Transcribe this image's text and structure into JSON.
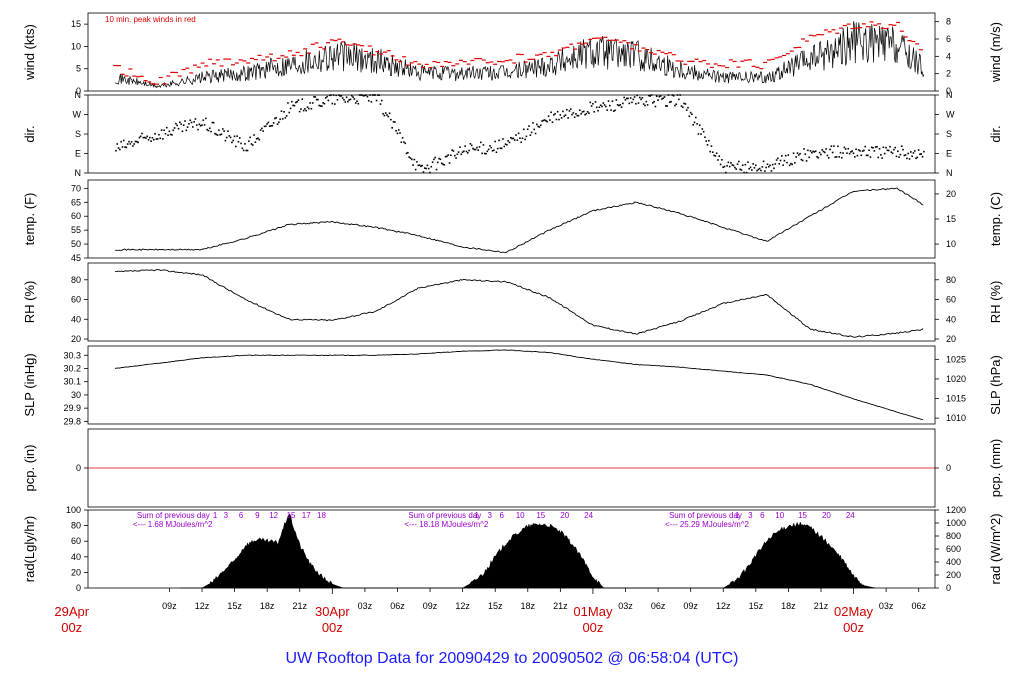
{
  "footer_title": "UW Rooftop Data for 20090429  to  20090502 @ 06:58:04  (UTC)",
  "colors": {
    "peak_red": "#e00000",
    "series_black": "#000000",
    "title_blue": "#1a1aff",
    "solar_purple": "#9900cc",
    "zero_line_red": "#d00000"
  },
  "chart_data": [
    {
      "id": "wind",
      "type": "line",
      "ylabel": "wind (kts)",
      "ylabel_right": "wind (m/s)",
      "annotation": "10 min. peak winds in red",
      "ylim": [
        0,
        17.5
      ],
      "yticks": [
        0,
        5,
        10,
        15
      ],
      "right_ylim": [
        0,
        9
      ],
      "right_yticks": [
        0,
        2,
        4,
        6,
        8
      ],
      "x_hours": [
        4,
        8,
        12,
        16,
        20,
        24,
        28,
        32,
        36,
        40,
        44,
        48,
        52,
        56,
        60,
        64,
        68,
        72,
        76,
        78.5
      ],
      "series": [
        {
          "values": [
            3,
            1,
            3,
            4,
            6,
            8,
            7,
            4,
            4,
            4,
            6,
            9,
            8,
            5,
            3,
            3,
            7,
            11,
            10,
            5
          ]
        },
        {
          "values": [
            5,
            2,
            6,
            7,
            8,
            11,
            9,
            6,
            6,
            7,
            8,
            12,
            10,
            7,
            6,
            6,
            12,
            15,
            15,
            8
          ]
        }
      ]
    },
    {
      "id": "dir",
      "type": "scatter",
      "ylabel": "dir.",
      "ylabel_right": "dir.",
      "ylim": [
        0,
        360
      ],
      "yticks": [
        0,
        90,
        180,
        270,
        360
      ],
      "ytick_labels": [
        "N",
        "E",
        "S",
        "W",
        "N"
      ],
      "x_hours": [
        4,
        8,
        12,
        16,
        20,
        24,
        28,
        32,
        36,
        40,
        44,
        48,
        52,
        56,
        60,
        64,
        68,
        72,
        76,
        78.5
      ],
      "values": [
        110,
        180,
        230,
        120,
        300,
        340,
        350,
        10,
        100,
        130,
        250,
        300,
        330,
        340,
        20,
        30,
        90,
        100,
        95,
        85
      ]
    },
    {
      "id": "temp",
      "type": "line",
      "ylabel": "temp. (F)",
      "ylabel_right": "temp. (C)",
      "ylim": [
        45,
        73
      ],
      "yticks": [
        45,
        50,
        55,
        60,
        65,
        70
      ],
      "right_ylim": [
        7.22,
        22.78
      ],
      "right_yticks": [
        10,
        15,
        20
      ],
      "x_hours": [
        4,
        8,
        12,
        16,
        20,
        24,
        28,
        32,
        36,
        40,
        44,
        48,
        52,
        56,
        60,
        64,
        68,
        72,
        76,
        78.5
      ],
      "values": [
        48,
        48,
        48,
        52,
        57,
        58,
        56,
        53,
        49,
        47,
        55,
        62,
        65,
        61,
        56,
        51,
        60,
        69,
        70,
        64
      ]
    },
    {
      "id": "rh",
      "type": "line",
      "ylabel": "RH (%)",
      "ylabel_right": "RH (%)",
      "ylim": [
        18,
        97
      ],
      "yticks": [
        20,
        40,
        60,
        80
      ],
      "right_yticks": [
        20,
        40,
        60,
        80
      ],
      "x_hours": [
        4,
        8,
        12,
        16,
        20,
        24,
        28,
        32,
        36,
        40,
        44,
        48,
        52,
        56,
        60,
        64,
        68,
        72,
        76,
        78.5
      ],
      "values": [
        88,
        90,
        85,
        60,
        40,
        39,
        48,
        72,
        80,
        78,
        62,
        34,
        25,
        38,
        56,
        65,
        30,
        22,
        26,
        30
      ]
    },
    {
      "id": "slp",
      "type": "line",
      "ylabel": "SLP (inHg)",
      "ylabel_right": "SLP (hPa)",
      "ylim": [
        29.78,
        30.37
      ],
      "yticks": [
        29.8,
        29.9,
        30.0,
        30.1,
        30.2,
        30.3
      ],
      "right_ylim": [
        1008.5,
        1028.4
      ],
      "right_yticks": [
        1010,
        1015,
        1020,
        1025
      ],
      "x_hours": [
        4,
        8,
        12,
        16,
        20,
        24,
        28,
        32,
        36,
        40,
        44,
        48,
        52,
        56,
        60,
        64,
        68,
        72,
        76,
        78.5
      ],
      "values": [
        30.2,
        30.24,
        30.28,
        30.3,
        30.3,
        30.3,
        30.3,
        30.31,
        30.33,
        30.34,
        30.32,
        30.27,
        30.23,
        30.21,
        30.18,
        30.15,
        30.08,
        29.97,
        29.87,
        29.81
      ]
    },
    {
      "id": "pcp",
      "type": "line",
      "ylabel": "pcp. (in)",
      "ylabel_right": "pcp. (mm)",
      "ylim": [
        -1,
        1
      ],
      "yticks": [
        0
      ],
      "right_yticks": [
        0
      ],
      "x_hours": [
        4,
        78.5
      ],
      "values": [
        0,
        0
      ]
    },
    {
      "id": "rad",
      "type": "area",
      "ylabel": "rad(Lgly/hr)",
      "ylabel_right": "rad (W/m^2)",
      "ylim": [
        0,
        100
      ],
      "yticks": [
        0,
        20,
        40,
        60,
        80,
        100
      ],
      "right_ylim": [
        0,
        1200
      ],
      "right_yticks": [
        0,
        200,
        400,
        600,
        800,
        1000,
        1200
      ],
      "x_hours": [
        10,
        12,
        13,
        14,
        15,
        16,
        17,
        18,
        19,
        20,
        21,
        22,
        23,
        24,
        25,
        36,
        37,
        38,
        39,
        40,
        41,
        42,
        43,
        44,
        45,
        46,
        47,
        48,
        49,
        60,
        61,
        62,
        63,
        64,
        65,
        66,
        67,
        68,
        69,
        70,
        71,
        72,
        73,
        74
      ],
      "values": [
        0,
        0,
        8,
        22,
        35,
        55,
        62,
        60,
        58,
        96,
        55,
        30,
        15,
        5,
        0,
        0,
        8,
        20,
        40,
        58,
        70,
        79,
        82,
        80,
        72,
        58,
        38,
        15,
        0,
        0,
        8,
        22,
        42,
        60,
        72,
        80,
        82,
        78,
        66,
        52,
        36,
        15,
        3,
        0
      ],
      "annotations": [
        {
          "label": "Sum of previous day",
          "x": 6
        },
        {
          "label": "<--- 1.68 MJoules/m^2",
          "x": 6
        },
        {
          "label": "Sum of previous day",
          "x": 31
        },
        {
          "label": "<--- 18.18 MJoules/m^2",
          "x": 31
        },
        {
          "label": "Sum of previous day",
          "x": 55
        },
        {
          "label": "<--- 25.29 MJoules/m^2",
          "x": 55
        }
      ],
      "hour_markers": [
        {
          "day": 1,
          "labels": [
            "1",
            "3",
            "6",
            "9",
            "12",
            "15",
            "17",
            "18"
          ],
          "hours": [
            13.2,
            14.2,
            15.6,
            17.1,
            18.6,
            20.2,
            21.6,
            23.0
          ]
        },
        {
          "day": 2,
          "labels": [
            "1",
            "3",
            "6",
            "10",
            "15",
            "20",
            "24"
          ],
          "hours": [
            37.3,
            38.5,
            39.6,
            41.3,
            43.2,
            45.4,
            47.6
          ]
        },
        {
          "day": 3,
          "labels": [
            "1",
            "3",
            "6",
            "10",
            "15",
            "20",
            "24"
          ],
          "hours": [
            61.3,
            62.5,
            63.6,
            65.2,
            67.3,
            69.5,
            71.7
          ]
        }
      ]
    }
  ],
  "x_axis": {
    "range_hours": [
      1.5,
      79.5
    ],
    "ticks": [
      {
        "h": 9,
        "label": "09z"
      },
      {
        "h": 12,
        "label": "12z"
      },
      {
        "h": 15,
        "label": "15z"
      },
      {
        "h": 18,
        "label": "18z"
      },
      {
        "h": 21,
        "label": "21z"
      },
      {
        "h": 27,
        "label": "03z"
      },
      {
        "h": 30,
        "label": "06z"
      },
      {
        "h": 33,
        "label": "09z"
      },
      {
        "h": 36,
        "label": "12z"
      },
      {
        "h": 39,
        "label": "15z"
      },
      {
        "h": 42,
        "label": "18z"
      },
      {
        "h": 45,
        "label": "21z"
      },
      {
        "h": 51,
        "label": "03z"
      },
      {
        "h": 54,
        "label": "06z"
      },
      {
        "h": 57,
        "label": "09z"
      },
      {
        "h": 60,
        "label": "12z"
      },
      {
        "h": 63,
        "label": "15z"
      },
      {
        "h": 66,
        "label": "18z"
      },
      {
        "h": 69,
        "label": "21z"
      },
      {
        "h": 75,
        "label": "03z"
      },
      {
        "h": 78,
        "label": "06z"
      }
    ],
    "day_labels": [
      {
        "h": 0,
        "date": "29Apr",
        "time": "00z"
      },
      {
        "h": 24,
        "date": "30Apr",
        "time": "00z"
      },
      {
        "h": 48,
        "date": "01May",
        "time": "00z"
      },
      {
        "h": 72,
        "date": "02May",
        "time": "00z"
      }
    ]
  }
}
